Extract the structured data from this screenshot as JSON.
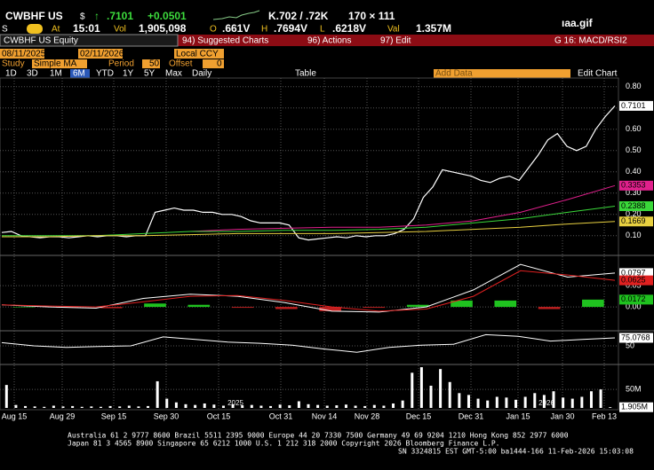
{
  "header": {
    "ticker": "CWBHF US",
    "currency": "$",
    "arrow": "↑",
    "last": ".7101",
    "change": "+0.0501",
    "bid_ask": "K.702 / .72K",
    "size": "170 × 111",
    "logo": "ıaa.gif",
    "at_label": "At",
    "time": "15:01",
    "vol_label": "Vol",
    "volume": "1,905,098",
    "open_label": "O",
    "open": ".661V",
    "high_label": "H",
    "high": ".7694V",
    "low_label": "L",
    "low": ".6218V",
    "val_label": "Val",
    "value": "1.357M"
  },
  "menu": {
    "security": "CWBHF US Equity",
    "suggested": "94) Suggested Charts",
    "actions": "96) Actions",
    "edit": "97) Edit",
    "template": "G 16: MACD/RSI2"
  },
  "toolbar": {
    "start_date": "08/11/2025",
    "end_date": "02/11/2026",
    "currency": "Local CCY",
    "study_label": "Study",
    "study": "Simple MA",
    "period_label": "Period",
    "period": "50",
    "offset_label": "Offset",
    "offset": "0",
    "ranges": [
      "1D",
      "3D",
      "1M",
      "6M",
      "YTD",
      "1Y",
      "5Y",
      "Max"
    ],
    "active_range": 3,
    "frequency": "Daily",
    "table": "Table",
    "add_data": "Add Data",
    "edit_chart": "Edit Chart"
  },
  "x_axis": {
    "labels": [
      "Aug 15",
      "Aug 29",
      "Sep 15",
      "Sep 30",
      "Oct 15",
      "Oct 31",
      "Nov 14",
      "Nov 28",
      "Dec 15",
      "Dec 31",
      "Jan 15",
      "Jan 30",
      "Feb 13"
    ],
    "years": [
      "2025",
      "2026"
    ]
  },
  "chart_data": [
    {
      "type": "line",
      "ylim": [
        0.02,
        0.82
      ],
      "yticks": [
        {
          "value": 0.1,
          "label": "0.10"
        },
        {
          "value": 0.2,
          "label": "0.20"
        },
        {
          "value": 0.3,
          "label": "0.30"
        },
        {
          "value": 0.4,
          "label": "0.40"
        },
        {
          "value": 0.5,
          "label": "0.50"
        },
        {
          "value": 0.6,
          "label": "0.60"
        },
        {
          "value": 0.7,
          "label": "0.70"
        },
        {
          "value": 0.8,
          "label": "0.80"
        }
      ],
      "grid": true,
      "series": [
        {
          "color": "#ffffff",
          "values": [
            0.115,
            0.12,
            0.1,
            0.095,
            0.09,
            0.095,
            0.095,
            0.09,
            0.095,
            0.1,
            0.095,
            0.1,
            0.1,
            0.095,
            0.1,
            0.1,
            0.21,
            0.22,
            0.23,
            0.22,
            0.22,
            0.21,
            0.21,
            0.2,
            0.2,
            0.19,
            0.17,
            0.16,
            0.16,
            0.16,
            0.15,
            0.09,
            0.08,
            0.085,
            0.09,
            0.095,
            0.09,
            0.1,
            0.095,
            0.1,
            0.1,
            0.11,
            0.13,
            0.18,
            0.28,
            0.33,
            0.41,
            0.4,
            0.39,
            0.38,
            0.36,
            0.35,
            0.37,
            0.38,
            0.36,
            0.42,
            0.48,
            0.55,
            0.58,
            0.52,
            0.5,
            0.52,
            0.6,
            0.66,
            0.7101
          ]
        },
        {
          "color": "#e0208c",
          "values": [
            null,
            null,
            null,
            null,
            0.12,
            0.13,
            0.135,
            0.14,
            0.14,
            0.15,
            0.17,
            0.21,
            0.27,
            0.3353
          ]
        },
        {
          "color": "#3ad83a",
          "values": [
            0.1,
            0.1,
            0.1,
            0.11,
            0.12,
            0.12,
            0.125,
            0.125,
            0.13,
            0.14,
            0.16,
            0.18,
            0.21,
            0.2388
          ]
        },
        {
          "color": "#e8d040",
          "values": [
            0.095,
            0.095,
            0.1,
            0.1,
            0.105,
            0.11,
            0.11,
            0.11,
            0.115,
            0.12,
            0.13,
            0.14,
            0.155,
            0.1669
          ]
        }
      ]
    },
    {
      "type": "line",
      "ylim": [
        -0.054,
        0.117
      ],
      "yticks": [
        {
          "value": 0.05,
          "label": "0.05"
        },
        {
          "value": 0,
          "label": "0.00"
        }
      ],
      "grid": true,
      "series": [
        {
          "color": "#ffffff",
          "values": [
            0.005,
            0.0,
            -0.003,
            0.02,
            0.03,
            0.025,
            0.01,
            -0.01,
            -0.012,
            0.0,
            0.04,
            0.1,
            0.07,
            0.0797
          ]
        },
        {
          "color": "#e02020",
          "values": [
            0.005,
            0.002,
            0.0,
            0.012,
            0.025,
            0.027,
            0.015,
            0.0,
            -0.01,
            -0.005,
            0.025,
            0.085,
            0.075,
            0.0625
          ]
        }
      ],
      "histogram": {
        "color": "#1fc21f",
        "color_down": "#c02020",
        "values": [
          0.0,
          -0.002,
          -0.003,
          0.008,
          0.005,
          -0.002,
          -0.005,
          -0.01,
          -0.002,
          0.005,
          0.015,
          0.015,
          -0.005,
          0.0172
        ]
      }
    },
    {
      "type": "line",
      "ylim": [
        0,
        100
      ],
      "yticks": [
        50
      ],
      "grid": true,
      "series": [
        {
          "color": "#ffffff",
          "values": [
            60,
            50,
            45,
            48,
            50,
            78,
            70,
            62,
            58,
            52,
            40,
            30,
            45,
            52,
            55,
            85,
            80,
            65,
            70,
            75.0768
          ]
        }
      ]
    },
    {
      "type": "bar",
      "ylim": [
        0,
        115000000
      ],
      "yticks": [
        {
          "value": 50000000,
          "label": "50M"
        }
      ],
      "grid": true,
      "color": "#ffffff",
      "values": [
        62000000,
        8000000,
        5000000,
        4000000,
        3000000,
        6000000,
        4000000,
        5000000,
        3000000,
        4000000,
        3000000,
        5000000,
        4000000,
        6000000,
        4000000,
        5000000,
        72000000,
        25000000,
        15000000,
        10000000,
        8000000,
        12000000,
        9000000,
        6000000,
        10000000,
        7000000,
        8000000,
        6000000,
        5000000,
        9000000,
        7000000,
        18000000,
        10000000,
        8000000,
        6000000,
        7000000,
        9000000,
        6000000,
        5000000,
        8000000,
        6000000,
        12000000,
        20000000,
        95000000,
        110000000,
        60000000,
        105000000,
        70000000,
        40000000,
        35000000,
        25000000,
        20000000,
        30000000,
        28000000,
        22000000,
        30000000,
        40000000,
        35000000,
        45000000,
        28000000,
        25000000,
        30000000,
        45000000,
        50000000,
        1905098
      ],
      "value_labels": [
        null,
        null,
        null,
        null,
        null,
        null,
        null,
        null,
        null,
        null,
        null,
        null,
        null,
        null,
        null,
        null,
        null,
        null,
        null,
        null,
        null,
        null,
        null,
        null,
        null,
        null,
        null,
        null,
        null,
        null,
        null,
        null,
        null,
        null,
        null,
        null,
        null,
        null,
        null,
        null,
        null,
        null,
        null,
        null,
        null,
        null,
        null,
        null,
        null,
        null,
        null,
        null,
        null,
        null,
        null,
        null,
        null,
        null,
        null,
        null,
        null,
        null,
        null,
        null,
        "1.905M"
      ]
    }
  ],
  "footer": {
    "line1": "Australia 61 2 9777 8600 Brazil 5511 2395 9000 Europe 44 20 7330 7500 Germany 49 69 9204 1210 Hong Kong 852 2977 6000",
    "line2": "Japan 81 3 4565 8900      Singapore 65 6212 1000      U.S. 1 212 318 2000        Copyright 2026 Bloomberg Finance L.P.",
    "line3": "SN 3324815 EST  GMT-5:00 ba1444-166 11-Feb-2026 15:03:08"
  }
}
